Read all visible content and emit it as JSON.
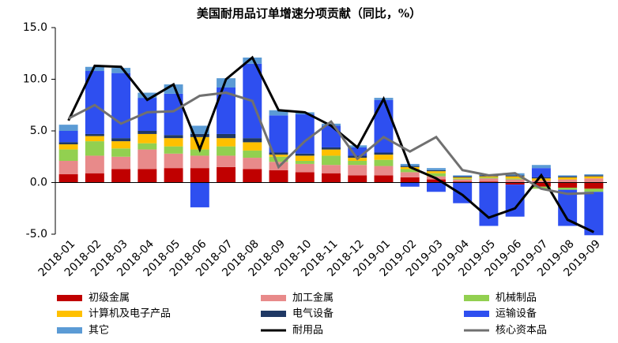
{
  "chart_data": {
    "type": "bar",
    "stacked": true,
    "title": "美国耐用品订单增速分项贡献（同比，%）",
    "categories": [
      "2018-01",
      "2018-02",
      "2018-03",
      "2018-04",
      "2018-05",
      "2018-06",
      "2018-07",
      "2018-08",
      "2018-09",
      "2018-10",
      "2018-11",
      "2018-12",
      "2019-01",
      "2019-02",
      "2019-03",
      "2019-04",
      "2019-05",
      "2019-06",
      "2019-07",
      "2019-08",
      "2019-09"
    ],
    "ylim": [
      -5,
      15
    ],
    "yticks": [
      {
        "value": 15,
        "label": "15.0"
      },
      {
        "value": 10,
        "label": "10.0"
      },
      {
        "value": 5,
        "label": "5.0"
      },
      {
        "value": 0,
        "label": "0.0"
      },
      {
        "value": -5,
        "label": "-5.0"
      }
    ],
    "grid": false,
    "legend": "bottom",
    "series": [
      {
        "name": "初级金属",
        "type": "bar",
        "color": "#c00000",
        "values": [
          0.8,
          0.9,
          1.3,
          1.3,
          1.4,
          1.4,
          1.5,
          1.3,
          1.2,
          1.0,
          0.9,
          0.7,
          0.7,
          0.5,
          0.3,
          0.1,
          0.1,
          -0.2,
          -0.4,
          -0.5,
          -0.6
        ]
      },
      {
        "name": "加工金属",
        "type": "bar",
        "color": "#e88a8a",
        "values": [
          1.3,
          1.7,
          1.2,
          1.9,
          1.4,
          1.2,
          1.1,
          1.1,
          0.8,
          0.8,
          0.8,
          1.0,
          0.9,
          0.5,
          0.3,
          0.2,
          0.3,
          0.3,
          0.2,
          0.3,
          0.4
        ]
      },
      {
        "name": "机械制品",
        "type": "bar",
        "color": "#92d050",
        "values": [
          1.1,
          1.4,
          0.8,
          0.6,
          0.7,
          0.6,
          0.9,
          0.7,
          0.5,
          0.3,
          0.9,
          0.4,
          0.6,
          0.3,
          0.3,
          0.1,
          0.1,
          0.1,
          -0.2,
          -0.2,
          -0.3
        ]
      },
      {
        "name": "计算机及电子产品",
        "type": "bar",
        "color": "#ffc000",
        "values": [
          0.5,
          0.5,
          0.7,
          0.9,
          0.8,
          1.2,
          0.8,
          0.8,
          0.2,
          0.5,
          0.6,
          0.3,
          0.5,
          0.2,
          0.2,
          0.1,
          0.1,
          0.2,
          0.2,
          0.2,
          0.2
        ]
      },
      {
        "name": "电气设备",
        "type": "bar",
        "color": "#1f3864",
        "values": [
          0.2,
          0.2,
          0.3,
          0.3,
          0.3,
          0.3,
          0.4,
          0.4,
          0.2,
          0.2,
          0.2,
          0.2,
          0.2,
          0.1,
          0.1,
          0.1,
          0.1,
          0.1,
          0.1,
          0.1,
          0.1
        ]
      },
      {
        "name": "运输设备",
        "type": "bar",
        "color": "#2e4ff0",
        "values": [
          1.1,
          6.1,
          6.3,
          3.2,
          4.0,
          -2.4,
          4.5,
          7.2,
          3.6,
          3.8,
          2.1,
          0.8,
          5.1,
          -0.4,
          -0.9,
          -2.0,
          -4.2,
          -3.1,
          0.9,
          -3.5,
          -4.2
        ]
      },
      {
        "name": "其它",
        "type": "bar",
        "color": "#5b9bd5",
        "values": [
          0.6,
          0.4,
          0.5,
          0.5,
          0.9,
          0.8,
          0.9,
          0.6,
          0.5,
          0.2,
          0.2,
          0.2,
          0.2,
          0.2,
          0.2,
          0.1,
          0.1,
          0.2,
          0.3,
          0.1,
          0.1
        ]
      },
      {
        "name": "耐用品",
        "type": "line",
        "color": "#000000",
        "values": [
          6.0,
          11.3,
          11.2,
          8.0,
          9.5,
          3.2,
          10.0,
          12.1,
          7.0,
          6.8,
          5.5,
          3.4,
          8.1,
          1.5,
          0.4,
          -1.2,
          -3.4,
          -2.5,
          0.7,
          -3.6,
          -4.8
        ]
      },
      {
        "name": "核心资本品",
        "type": "line",
        "color": "#707070",
        "values": [
          6.2,
          7.5,
          5.7,
          6.8,
          6.9,
          8.4,
          8.7,
          7.9,
          1.5,
          4.0,
          5.9,
          2.3,
          4.4,
          3.0,
          4.4,
          1.2,
          0.7,
          0.9,
          -0.6,
          -1.1,
          -1.0
        ]
      }
    ]
  }
}
